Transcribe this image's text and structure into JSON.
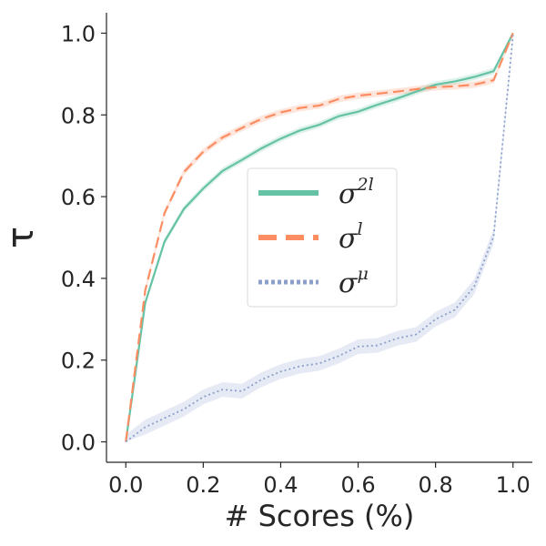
{
  "chart_data": {
    "type": "line",
    "title": "",
    "xlabel": "# Scores (%)",
    "ylabel": "τ",
    "xlim": [
      -0.05,
      1.05
    ],
    "ylim": [
      -0.05,
      1.05
    ],
    "xticks": [
      0.0,
      0.2,
      0.4,
      0.6,
      0.8,
      1.0
    ],
    "xtick_labels": [
      "0.0",
      "0.2",
      "0.4",
      "0.6",
      "0.8",
      "1.0"
    ],
    "yticks": [
      0.0,
      0.2,
      0.4,
      0.6,
      0.8,
      1.0
    ],
    "ytick_labels": [
      "0.0",
      "0.2",
      "0.4",
      "0.6",
      "0.8",
      "1.0"
    ],
    "grid": false,
    "legend_position": "center",
    "x": [
      0.0,
      0.05,
      0.1,
      0.15,
      0.2,
      0.25,
      0.3,
      0.35,
      0.4,
      0.45,
      0.5,
      0.55,
      0.6,
      0.65,
      0.7,
      0.75,
      0.8,
      0.85,
      0.9,
      0.95,
      1.0
    ],
    "series": [
      {
        "name": "σ2l",
        "legend_base": "σ",
        "legend_sup": "2l",
        "style": "solid",
        "color": "#66c2a5",
        "values": [
          0.0,
          0.34,
          0.49,
          0.57,
          0.62,
          0.663,
          0.69,
          0.718,
          0.742,
          0.762,
          0.776,
          0.797,
          0.808,
          0.825,
          0.84,
          0.857,
          0.874,
          0.882,
          0.893,
          0.907,
          1.0
        ],
        "band": 0.008
      },
      {
        "name": "σl",
        "legend_base": "σ",
        "legend_sup": "l",
        "style": "dashed",
        "color": "#fc8d62",
        "values": [
          0.0,
          0.37,
          0.56,
          0.66,
          0.71,
          0.745,
          0.768,
          0.79,
          0.806,
          0.817,
          0.823,
          0.839,
          0.847,
          0.852,
          0.857,
          0.863,
          0.868,
          0.87,
          0.874,
          0.885,
          1.0
        ],
        "band": 0.008
      },
      {
        "name": "σμ",
        "legend_base": "σ",
        "legend_sup": "μ",
        "style": "dotted",
        "color": "#8da0cb",
        "values": [
          0.0,
          0.036,
          0.058,
          0.08,
          0.11,
          0.128,
          0.124,
          0.152,
          0.172,
          0.185,
          0.192,
          0.21,
          0.233,
          0.236,
          0.253,
          0.263,
          0.3,
          0.323,
          0.38,
          0.503,
          0.995
        ],
        "band": 0.018
      }
    ]
  }
}
